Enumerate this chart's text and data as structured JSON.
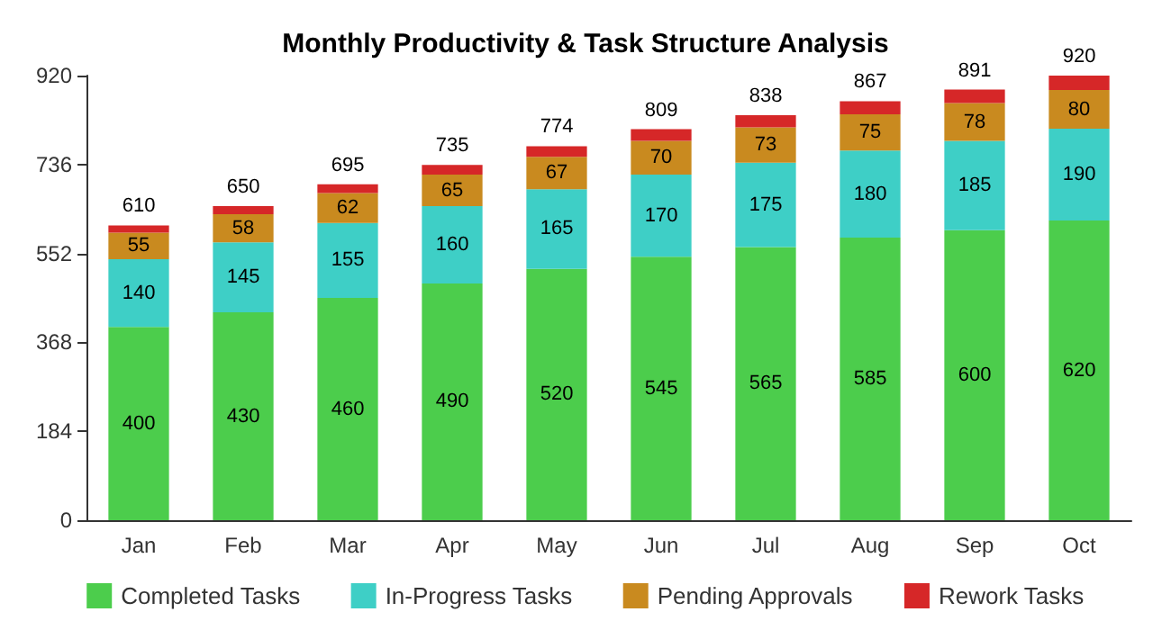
{
  "chart_data": {
    "type": "bar",
    "title": "Monthly Productivity & Task Structure Analysis",
    "categories": [
      "Jan",
      "Feb",
      "Mar",
      "Apr",
      "May",
      "Jun",
      "Jul",
      "Aug",
      "Sep",
      "Oct"
    ],
    "stacked": true,
    "ylim": [
      0,
      920
    ],
    "yticks": [
      0,
      184,
      368,
      552,
      736,
      920
    ],
    "legend": "bottom",
    "grid": false,
    "series": [
      {
        "name": "Completed Tasks",
        "color": "#4ccd4c",
        "values": [
          400,
          430,
          460,
          490,
          520,
          545,
          565,
          585,
          600,
          620
        ],
        "value_labels": [
          "400",
          "430",
          "460",
          "490",
          "520",
          "545",
          "565",
          "585",
          "600",
          "620"
        ]
      },
      {
        "name": "In-Progress Tasks",
        "color": "#3ecfc6",
        "values": [
          140,
          145,
          155,
          160,
          165,
          170,
          175,
          180,
          185,
          190
        ],
        "value_labels": [
          "140",
          "145",
          "155",
          "160",
          "165",
          "170",
          "175",
          "180",
          "185",
          "190"
        ]
      },
      {
        "name": "Pending Approvals",
        "color": "#c98a1f",
        "values": [
          55,
          58,
          62,
          65,
          67,
          70,
          73,
          75,
          78,
          80
        ],
        "value_labels": [
          "55",
          "58",
          "62",
          "65",
          "67",
          "70",
          "73",
          "75",
          "78",
          "80"
        ]
      },
      {
        "name": "Rework Tasks",
        "color": "#d62728",
        "values": [
          15,
          17,
          18,
          20,
          22,
          24,
          25,
          27,
          28,
          30
        ]
      }
    ],
    "totals": [
      "610",
      "650",
      "695",
      "735",
      "774",
      "809",
      "838",
      "867",
      "891",
      "920"
    ]
  }
}
